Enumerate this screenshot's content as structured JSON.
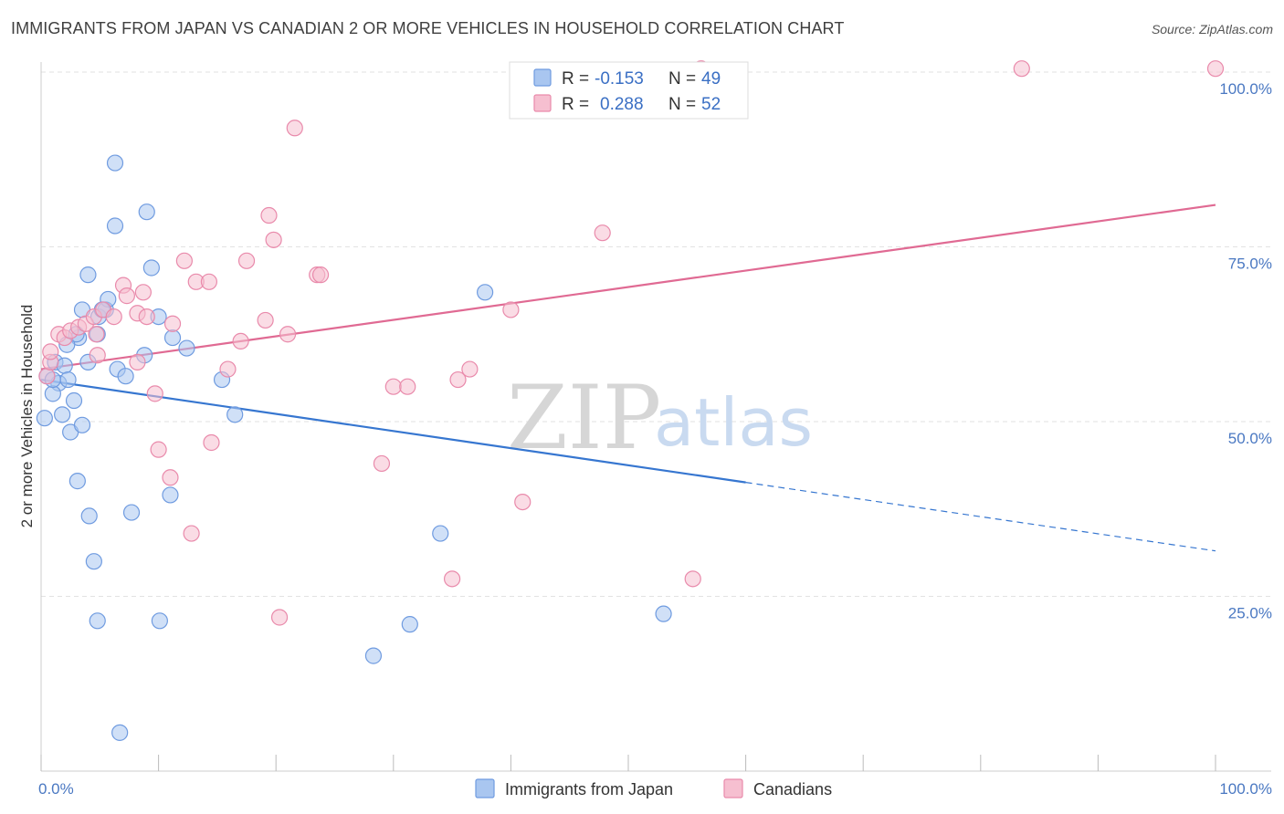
{
  "header": {
    "title": "IMMIGRANTS FROM JAPAN VS CANADIAN 2 OR MORE VEHICLES IN HOUSEHOLD CORRELATION CHART",
    "source": "Source: ZipAtlas.com"
  },
  "watermark": {
    "zip": "ZIP",
    "atlas": "atlas"
  },
  "colors": {
    "blue_fill": "#a9c6f0",
    "blue_stroke": "#6f9be0",
    "blue_line": "#3676d0",
    "pink_fill": "#f6bfd0",
    "pink_stroke": "#e98aab",
    "pink_line": "#e06a93",
    "tick_text": "#4a78c2",
    "grid": "#e2e2e2"
  },
  "legend": {
    "rows": [
      {
        "r_label": "R = ",
        "r_value": "-0.153",
        "n_label": "N = ",
        "n_value": "49",
        "series": "blue"
      },
      {
        "r_label": "R = ",
        "r_value": "0.288",
        "n_label": "N = ",
        "n_value": "52",
        "series": "pink"
      }
    ]
  },
  "chart_data": {
    "type": "scatter",
    "title": "IMMIGRANTS FROM JAPAN VS CANADIAN 2 OR MORE VEHICLES IN HOUSEHOLD CORRELATION CHART",
    "xlabel": "",
    "ylabel": "2 or more Vehicles in Household",
    "xlim": [
      0,
      100
    ],
    "ylim": [
      0,
      100
    ],
    "x_tick_labels": [
      "0.0%",
      "100.0%"
    ],
    "y_ticks": [
      25,
      50,
      75,
      100
    ],
    "y_tick_labels": [
      "25.0%",
      "50.0%",
      "75.0%",
      "100.0%"
    ],
    "grid": true,
    "legend_position": "top-center",
    "series": [
      {
        "name": "Immigrants from Japan",
        "color": "blue",
        "points": [
          [
            0.5,
            56.5
          ],
          [
            1.2,
            58.5
          ],
          [
            1.5,
            55.5
          ],
          [
            2.0,
            58.0
          ],
          [
            1.0,
            54.0
          ],
          [
            0.3,
            50.5
          ],
          [
            1.8,
            51.0
          ],
          [
            2.5,
            48.5
          ],
          [
            3.5,
            49.5
          ],
          [
            2.8,
            53.0
          ],
          [
            4.0,
            58.5
          ],
          [
            3.2,
            62.0
          ],
          [
            2.2,
            61.0
          ],
          [
            3.5,
            66.0
          ],
          [
            4.9,
            65.0
          ],
          [
            5.5,
            66.0
          ],
          [
            5.7,
            67.5
          ],
          [
            4.8,
            62.5
          ],
          [
            4.0,
            71.0
          ],
          [
            6.3,
            87.0
          ],
          [
            6.3,
            78.0
          ],
          [
            9.0,
            80.0
          ],
          [
            9.4,
            72.0
          ],
          [
            10.0,
            65.0
          ],
          [
            11.2,
            62.0
          ],
          [
            12.4,
            60.5
          ],
          [
            8.8,
            59.5
          ],
          [
            6.5,
            57.5
          ],
          [
            7.2,
            56.5
          ],
          [
            15.4,
            56.0
          ],
          [
            16.5,
            51.0
          ],
          [
            3.1,
            41.5
          ],
          [
            4.1,
            36.5
          ],
          [
            7.7,
            37.0
          ],
          [
            11.0,
            39.5
          ],
          [
            4.5,
            30.0
          ],
          [
            4.8,
            21.5
          ],
          [
            10.1,
            21.5
          ],
          [
            28.3,
            16.5
          ],
          [
            31.4,
            21.0
          ],
          [
            34.0,
            34.0
          ],
          [
            37.8,
            68.5
          ],
          [
            53.0,
            22.5
          ],
          [
            6.7,
            5.5
          ],
          [
            43.0,
            100.0
          ],
          [
            1.0,
            56.0
          ],
          [
            5.2,
            66.0
          ],
          [
            2.3,
            56.0
          ],
          [
            3.0,
            62.5
          ]
        ]
      },
      {
        "name": "Canadians",
        "color": "pink",
        "points": [
          [
            0.5,
            56.5
          ],
          [
            0.8,
            58.5
          ],
          [
            0.8,
            60.0
          ],
          [
            1.5,
            62.5
          ],
          [
            2.0,
            62.0
          ],
          [
            2.5,
            63.0
          ],
          [
            3.2,
            63.5
          ],
          [
            3.8,
            64.0
          ],
          [
            4.5,
            65.0
          ],
          [
            4.7,
            62.5
          ],
          [
            4.8,
            59.5
          ],
          [
            5.3,
            66.0
          ],
          [
            6.2,
            65.0
          ],
          [
            7.0,
            69.5
          ],
          [
            7.3,
            68.0
          ],
          [
            8.2,
            65.5
          ],
          [
            8.7,
            68.5
          ],
          [
            9.0,
            65.0
          ],
          [
            9.7,
            54.0
          ],
          [
            8.2,
            58.5
          ],
          [
            10.0,
            46.0
          ],
          [
            11.2,
            64.0
          ],
          [
            11.0,
            42.0
          ],
          [
            12.2,
            73.0
          ],
          [
            12.8,
            34.0
          ],
          [
            13.2,
            70.0
          ],
          [
            14.3,
            70.0
          ],
          [
            14.5,
            47.0
          ],
          [
            15.9,
            57.5
          ],
          [
            17.0,
            61.5
          ],
          [
            17.5,
            73.0
          ],
          [
            19.1,
            64.5
          ],
          [
            19.4,
            79.5
          ],
          [
            19.8,
            76.0
          ],
          [
            20.3,
            22.0
          ],
          [
            21.0,
            62.5
          ],
          [
            21.6,
            92.0
          ],
          [
            23.5,
            71.0
          ],
          [
            23.8,
            71.0
          ],
          [
            29.0,
            44.0
          ],
          [
            30.0,
            55.0
          ],
          [
            31.2,
            55.0
          ],
          [
            35.0,
            27.5
          ],
          [
            35.5,
            56.0
          ],
          [
            36.5,
            57.5
          ],
          [
            40.0,
            66.0
          ],
          [
            41.0,
            38.5
          ],
          [
            47.8,
            77.0
          ],
          [
            55.5,
            27.5
          ],
          [
            56.2,
            100.5
          ],
          [
            83.5,
            100.5
          ],
          [
            100.0,
            100.5
          ]
        ]
      }
    ],
    "trend_lines": [
      {
        "series": "Immigrants from Japan",
        "x": [
          0,
          100
        ],
        "y": [
          56.0,
          31.5
        ],
        "solid_until_x": 60
      },
      {
        "series": "Canadians",
        "x": [
          0,
          100
        ],
        "y": [
          57.5,
          81.0
        ]
      }
    ]
  },
  "bottom_legend": [
    {
      "label": "Immigrants from Japan",
      "series": "blue"
    },
    {
      "label": "Canadians",
      "series": "pink"
    }
  ]
}
